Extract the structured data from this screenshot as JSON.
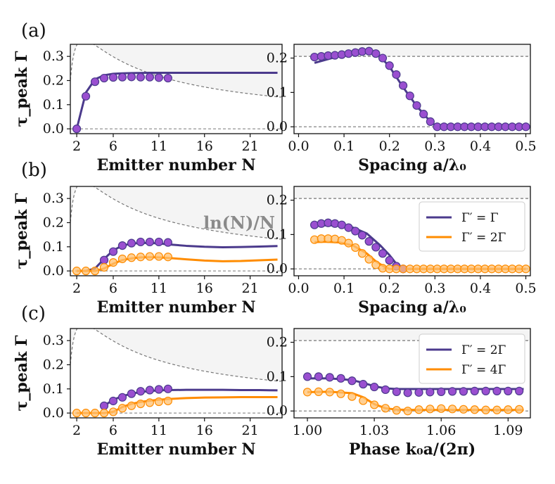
{
  "colors": {
    "purple": "#4b3a8c",
    "purple_marker": "#9a4fd0",
    "orange": "#ff8c00",
    "orange_marker": "#ffc070",
    "ref_dashed": "#777777",
    "shade": "#f4f4f4"
  },
  "panel_labels": [
    "(a)",
    "(b)",
    "(c)"
  ],
  "annotation": "ln(N)/N",
  "chart_data": [
    {
      "id": "a-left",
      "type": "line",
      "panel": "(a)",
      "ylabel": "τ_peak Γ",
      "xlabel": "Emitter number N",
      "xlim": [
        1.3,
        24.5
      ],
      "ylim": [
        -0.02,
        0.35
      ],
      "xticks": [
        2,
        6,
        11,
        16,
        21
      ],
      "yticks": [
        0.0,
        0.1,
        0.2,
        0.3
      ],
      "yticklabels": [
        "0.0",
        "0.1",
        "0.2",
        "0.3"
      ],
      "reference": "ln(N)/N",
      "series": [
        {
          "name": "Γ' = Γ",
          "color": "purple",
          "line_x": [
            2,
            3,
            4,
            5,
            6,
            7,
            8,
            10,
            12,
            16,
            20,
            24
          ],
          "line_y": [
            0.0,
            0.15,
            0.205,
            0.222,
            0.228,
            0.23,
            0.231,
            0.232,
            0.232,
            0.232,
            0.232,
            0.232
          ],
          "points_x": [
            2,
            3,
            4,
            5,
            6,
            7,
            8,
            9,
            10,
            11,
            12
          ],
          "points_y": [
            0.0,
            0.135,
            0.195,
            0.21,
            0.213,
            0.214,
            0.215,
            0.214,
            0.214,
            0.212,
            0.21
          ],
          "marker": "filled"
        }
      ]
    },
    {
      "id": "a-right",
      "type": "line",
      "panel": "(a)",
      "xlabel": "Spacing a/λ₀",
      "xlim": [
        -0.01,
        0.51
      ],
      "ylim": [
        -0.02,
        0.24
      ],
      "xticks": [
        0.0,
        0.1,
        0.2,
        0.3,
        0.4,
        0.5
      ],
      "xticklabels": [
        "0.0",
        "0.1",
        "0.2",
        "0.3",
        "0.4",
        "0.5"
      ],
      "yticks": [
        0.0,
        0.1,
        0.2
      ],
      "yticklabels": [
        "0.0",
        "0.1",
        "0.2"
      ],
      "hlines": [
        0.205
      ],
      "series": [
        {
          "name": "Γ' = Γ",
          "color": "purple",
          "line_x": [
            0.035,
            0.06,
            0.09,
            0.12,
            0.145,
            0.17,
            0.2,
            0.23,
            0.26,
            0.29,
            0.305,
            0.32,
            0.4,
            0.5
          ],
          "line_y": [
            0.186,
            0.195,
            0.206,
            0.218,
            0.224,
            0.218,
            0.175,
            0.115,
            0.06,
            0.015,
            0.0,
            0.0,
            0.0,
            0.0
          ],
          "points_x": [
            0.035,
            0.05,
            0.065,
            0.08,
            0.095,
            0.11,
            0.125,
            0.14,
            0.155,
            0.17,
            0.185,
            0.2,
            0.215,
            0.23,
            0.245,
            0.26,
            0.275,
            0.29,
            0.305,
            0.32,
            0.335,
            0.35,
            0.365,
            0.38,
            0.395,
            0.41,
            0.425,
            0.44,
            0.455,
            0.47,
            0.485,
            0.5
          ],
          "points_y": [
            0.203,
            0.205,
            0.207,
            0.208,
            0.21,
            0.213,
            0.216,
            0.219,
            0.22,
            0.213,
            0.2,
            0.178,
            0.152,
            0.12,
            0.09,
            0.062,
            0.037,
            0.015,
            0.0,
            0.0,
            0.0,
            0.0,
            0.0,
            0.0,
            0.0,
            0.0,
            0.0,
            0.0,
            0.0,
            0.0,
            0.0,
            0.0
          ],
          "marker": "filled"
        }
      ]
    },
    {
      "id": "b-left",
      "type": "line",
      "panel": "(b)",
      "ylabel": "τ_peak Γ",
      "xlabel": "Emitter number N",
      "xlim": [
        1.3,
        24.5
      ],
      "ylim": [
        -0.02,
        0.35
      ],
      "xticks": [
        2,
        6,
        11,
        16,
        21
      ],
      "yticks": [
        0.0,
        0.1,
        0.2,
        0.3
      ],
      "yticklabels": [
        "0.0",
        "0.1",
        "0.2",
        "0.3"
      ],
      "reference": "ln(N)/N",
      "series": [
        {
          "name": "Γ' = Γ",
          "color": "purple",
          "line_x": [
            2,
            3,
            4,
            5,
            6,
            7,
            8,
            9,
            10,
            11,
            12,
            14,
            16,
            18,
            20,
            22,
            24
          ],
          "line_y": [
            0.0,
            0.0,
            0.01,
            0.05,
            0.085,
            0.105,
            0.113,
            0.116,
            0.116,
            0.114,
            0.11,
            0.104,
            0.1,
            0.098,
            0.099,
            0.101,
            0.103
          ],
          "points_x": [
            5,
            6,
            7,
            8,
            9,
            10,
            11,
            12
          ],
          "points_y": [
            0.045,
            0.08,
            0.105,
            0.115,
            0.12,
            0.12,
            0.12,
            0.118
          ],
          "marker": "filled"
        },
        {
          "name": "Γ' = 2Γ",
          "color": "orange",
          "line_x": [
            2,
            3,
            4,
            5,
            6,
            7,
            8,
            9,
            10,
            11,
            12,
            14,
            16,
            18,
            20,
            22,
            24
          ],
          "line_y": [
            0.0,
            0.0,
            0.0,
            0.01,
            0.03,
            0.045,
            0.052,
            0.056,
            0.057,
            0.056,
            0.054,
            0.048,
            0.043,
            0.04,
            0.041,
            0.044,
            0.047
          ],
          "points_x": [
            2,
            3,
            4,
            5,
            6,
            7,
            8,
            9,
            10,
            11,
            12
          ],
          "points_y": [
            0.0,
            0.0,
            0.0,
            0.015,
            0.035,
            0.05,
            0.055,
            0.058,
            0.06,
            0.06,
            0.058
          ],
          "marker": "light"
        }
      ]
    },
    {
      "id": "b-right",
      "type": "line",
      "panel": "(b)",
      "xlabel": "Spacing a/λ₀",
      "xlim": [
        -0.01,
        0.51
      ],
      "ylim": [
        -0.02,
        0.24
      ],
      "xticks": [
        0.0,
        0.1,
        0.2,
        0.3,
        0.4,
        0.5
      ],
      "xticklabels": [
        "0.0",
        "0.1",
        "0.2",
        "0.3",
        "0.4",
        "0.5"
      ],
      "yticks": [
        0.0,
        0.1,
        0.2
      ],
      "yticklabels": [
        "0.0",
        "0.1",
        "0.2"
      ],
      "hlines": [
        0.205
      ],
      "legend": {
        "position": "right",
        "labels": [
          "Γ′ = Γ",
          "Γ′ = 2Γ"
        ]
      },
      "series": [
        {
          "name": "Γ' = Γ",
          "color": "purple",
          "line_x": [
            0.035,
            0.06,
            0.09,
            0.12,
            0.15,
            0.18,
            0.2,
            0.215,
            0.23,
            0.3,
            0.4,
            0.5
          ],
          "line_y": [
            0.126,
            0.127,
            0.126,
            0.12,
            0.103,
            0.068,
            0.04,
            0.015,
            0.0,
            0.0,
            0.0,
            0.0
          ],
          "points_x": [
            0.035,
            0.05,
            0.065,
            0.08,
            0.095,
            0.11,
            0.125,
            0.14,
            0.155,
            0.17,
            0.185,
            0.2,
            0.215,
            0.23
          ],
          "points_y": [
            0.128,
            0.132,
            0.134,
            0.132,
            0.128,
            0.12,
            0.11,
            0.098,
            0.08,
            0.063,
            0.045,
            0.025,
            0.008,
            0.0
          ],
          "marker": "filled"
        },
        {
          "name": "Γ' = 2Γ",
          "color": "orange",
          "line_x": [
            0.035,
            0.06,
            0.09,
            0.12,
            0.15,
            0.17,
            0.19,
            0.2,
            0.3,
            0.4,
            0.5
          ],
          "line_y": [
            0.078,
            0.079,
            0.077,
            0.068,
            0.045,
            0.022,
            0.005,
            0.0,
            0.0,
            0.0,
            0.0
          ],
          "points_x": [
            0.035,
            0.05,
            0.065,
            0.08,
            0.095,
            0.11,
            0.125,
            0.14,
            0.155,
            0.17,
            0.185,
            0.2,
            0.215,
            0.23,
            0.245,
            0.26,
            0.275,
            0.29,
            0.305,
            0.32,
            0.335,
            0.35,
            0.365,
            0.38,
            0.395,
            0.41,
            0.425,
            0.44,
            0.455,
            0.47,
            0.485,
            0.5
          ],
          "points_y": [
            0.085,
            0.088,
            0.088,
            0.087,
            0.083,
            0.075,
            0.062,
            0.045,
            0.028,
            0.012,
            0.002,
            0.0,
            0.0,
            0.0,
            0.0,
            0.0,
            0.0,
            0.0,
            0.0,
            0.0,
            0.0,
            0.0,
            0.0,
            0.0,
            0.0,
            0.0,
            0.0,
            0.0,
            0.0,
            0.0,
            0.0,
            0.0
          ],
          "marker": "light"
        }
      ]
    },
    {
      "id": "c-left",
      "type": "line",
      "panel": "(c)",
      "ylabel": "τ_peak Γ",
      "xlabel": "Emitter number N",
      "xlim": [
        1.3,
        24.5
      ],
      "ylim": [
        -0.02,
        0.35
      ],
      "xticks": [
        2,
        6,
        11,
        16,
        21
      ],
      "yticks": [
        0.0,
        0.1,
        0.2,
        0.3
      ],
      "yticklabels": [
        "0.0",
        "0.1",
        "0.2",
        "0.3"
      ],
      "reference": "ln(N)/N",
      "series": [
        {
          "name": "Γ' = 2Γ",
          "color": "purple",
          "line_x": [
            5,
            6,
            7,
            8,
            9,
            10,
            11,
            12,
            14,
            16,
            18,
            20,
            22,
            24
          ],
          "line_y": [
            0.03,
            0.055,
            0.07,
            0.08,
            0.087,
            0.091,
            0.094,
            0.095,
            0.096,
            0.096,
            0.096,
            0.095,
            0.095,
            0.094
          ],
          "points_x": [
            5,
            6,
            7,
            8,
            9,
            10,
            11,
            12
          ],
          "points_y": [
            0.03,
            0.05,
            0.065,
            0.08,
            0.09,
            0.095,
            0.098,
            0.1
          ],
          "marker": "filled"
        },
        {
          "name": "Γ' = 4Γ",
          "color": "orange",
          "line_x": [
            2,
            3,
            4,
            5,
            6,
            7,
            8,
            9,
            10,
            11,
            12,
            14,
            16,
            18,
            20,
            22,
            24
          ],
          "line_y": [
            0.0,
            0.0,
            0.0,
            0.0,
            0.005,
            0.025,
            0.038,
            0.046,
            0.051,
            0.055,
            0.058,
            0.062,
            0.064,
            0.065,
            0.066,
            0.066,
            0.066
          ],
          "points_x": [
            2,
            3,
            4,
            5,
            6,
            7,
            8,
            9,
            10,
            11,
            12
          ],
          "points_y": [
            0.0,
            0.0,
            0.0,
            0.0,
            0.005,
            0.02,
            0.03,
            0.038,
            0.043,
            0.047,
            0.05
          ],
          "marker": "light"
        }
      ]
    },
    {
      "id": "c-right",
      "type": "line",
      "panel": "(c)",
      "xlabel": "Phase k₀a/(2π)",
      "xlim": [
        0.994,
        1.1
      ],
      "ylim": [
        -0.02,
        0.24
      ],
      "xticks": [
        1.0,
        1.03,
        1.06,
        1.09
      ],
      "xticklabels": [
        "1.00",
        "1.03",
        "1.06",
        "1.09"
      ],
      "yticks": [
        0.0,
        0.1,
        0.2
      ],
      "yticklabels": [
        "0.0",
        "0.1",
        "0.2"
      ],
      "hlines": [
        0.205
      ],
      "legend": {
        "position": "top-right",
        "labels": [
          "Γ′ = 2Γ",
          "Γ′ = 4Γ"
        ]
      },
      "series": [
        {
          "name": "Γ' = 2Γ",
          "color": "purple",
          "line_x": [
            1.0,
            1.01,
            1.02,
            1.025,
            1.03,
            1.035,
            1.04,
            1.05,
            1.06,
            1.07,
            1.08,
            1.09,
            1.097
          ],
          "line_y": [
            0.095,
            0.095,
            0.09,
            0.082,
            0.072,
            0.066,
            0.064,
            0.064,
            0.064,
            0.064,
            0.064,
            0.064,
            0.064
          ],
          "points_x": [
            1.0,
            1.005,
            1.01,
            1.015,
            1.02,
            1.025,
            1.03,
            1.035,
            1.04,
            1.045,
            1.05,
            1.055,
            1.06,
            1.065,
            1.07,
            1.075,
            1.08,
            1.085,
            1.09,
            1.095
          ],
          "points_y": [
            0.1,
            0.1,
            0.098,
            0.095,
            0.088,
            0.078,
            0.07,
            0.062,
            0.056,
            0.053,
            0.054,
            0.055,
            0.056,
            0.057,
            0.057,
            0.058,
            0.058,
            0.058,
            0.058,
            0.058
          ],
          "marker": "filled"
        },
        {
          "name": "Γ' = 4Γ",
          "color": "orange",
          "line_x": [
            1.0,
            1.01,
            1.02,
            1.025,
            1.03,
            1.035,
            1.04,
            1.05,
            1.06,
            1.07,
            1.08,
            1.09,
            1.097
          ],
          "line_y": [
            0.055,
            0.056,
            0.052,
            0.04,
            0.02,
            0.008,
            0.004,
            0.003,
            0.003,
            0.003,
            0.003,
            0.003,
            0.003
          ],
          "points_x": [
            1.0,
            1.005,
            1.01,
            1.015,
            1.02,
            1.025,
            1.03,
            1.035,
            1.04,
            1.045,
            1.05,
            1.055,
            1.06,
            1.065,
            1.07,
            1.075,
            1.08,
            1.085,
            1.09,
            1.095
          ],
          "points_y": [
            0.055,
            0.056,
            0.055,
            0.05,
            0.042,
            0.03,
            0.018,
            0.008,
            0.002,
            0.0,
            0.004,
            0.006,
            0.007,
            0.006,
            0.005,
            0.004,
            0.003,
            0.003,
            0.004,
            0.005
          ],
          "marker": "light"
        }
      ]
    }
  ]
}
